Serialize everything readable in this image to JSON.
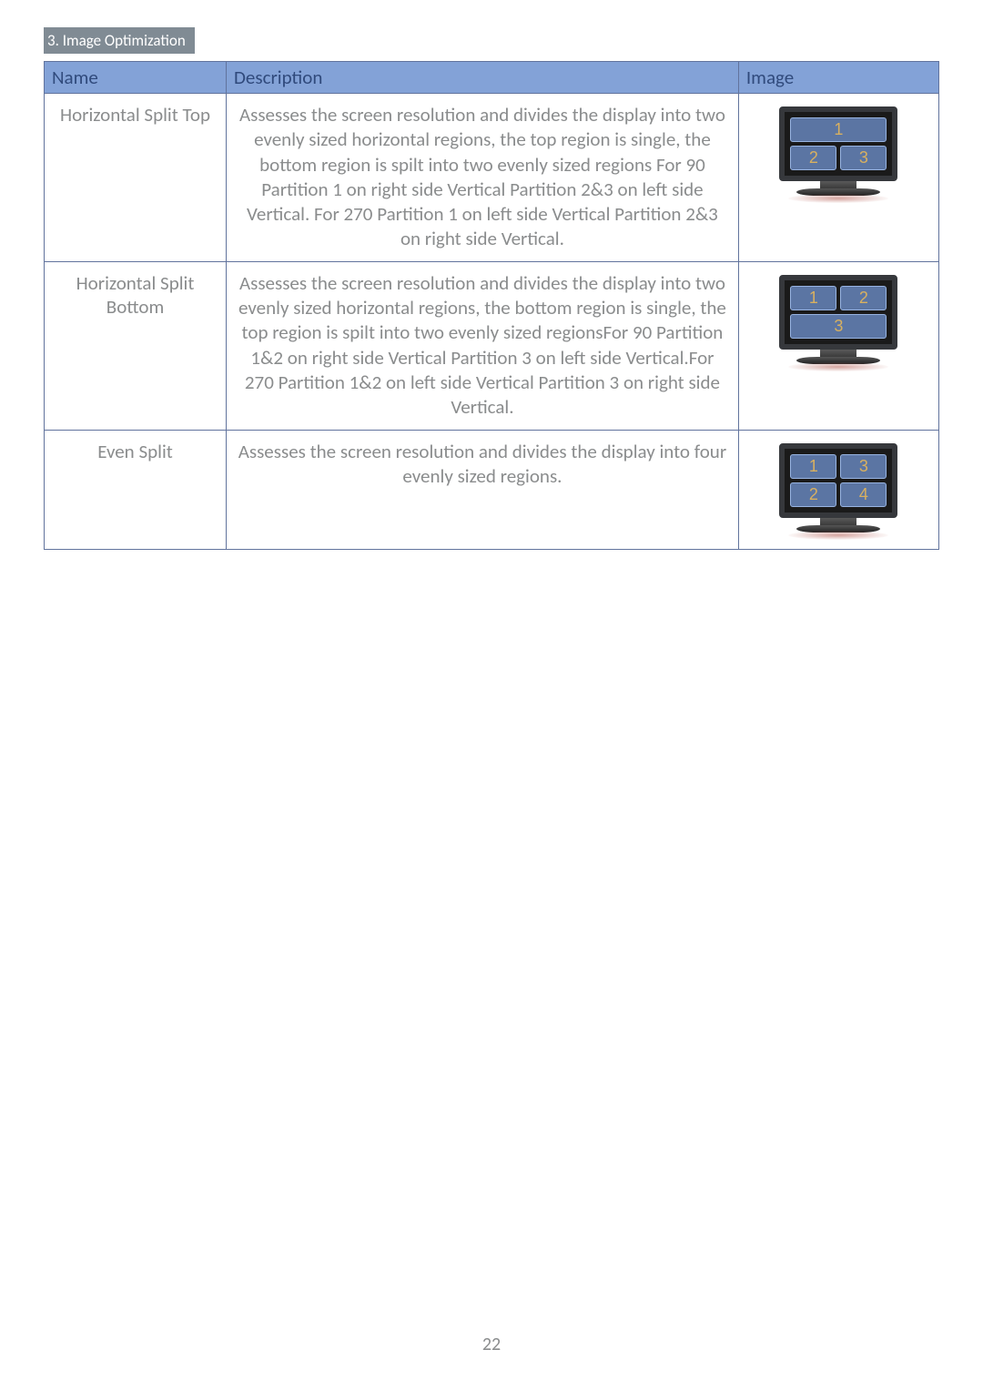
{
  "colors": {
    "header_bg": "#83a2d7",
    "header_text": "#304a7c",
    "border": "#61739d",
    "body_text": "#8a8c8d",
    "crumb_bg": "#808b94",
    "crumb_text": "#ffffff",
    "cell_bg": "#5b75a3",
    "cell_border": "#98b4e2",
    "cell_number": "#d8b060",
    "monitor_bezel": "#36383c",
    "monitor_screen": "#1a1a1a"
  },
  "crumb": "3. Image Optimization",
  "headers": {
    "name": "Name",
    "desc": "Description",
    "image": "Image"
  },
  "rows": [
    {
      "name": "Horizontal Split Top",
      "desc": "Assesses the screen resolution and divides the display into two evenly sized horizontal regions, the top region is single, the bottom region is spilt into two evenly sized regions\nFor 90 Partition 1 on right side Vertical Partition 2&3 on left side Vertical.\nFor 270 Partition 1 on left side Vertical Partition 2&3 on right side Vertical.",
      "layout": [
        [
          "1"
        ],
        [
          "2",
          "3"
        ]
      ]
    },
    {
      "name": "Horizontal Split Bottom",
      "desc": "Assesses the screen resolution and divides the display into two evenly sized horizontal regions, the bottom region is single, the top region is spilt into two evenly sized regionsFor 90 Partition 1&2 on right side Vertical Partition 3 on left side Vertical.For 270 Partition 1&2 on left side Vertical Partition 3 on right side Vertical.",
      "layout": [
        [
          "1",
          "2"
        ],
        [
          "3"
        ]
      ]
    },
    {
      "name": "Even Split",
      "desc": "Assesses the screen resolution and divides the display into four  evenly sized regions.",
      "layout": [
        [
          "1",
          "3"
        ],
        [
          "2",
          "4"
        ]
      ]
    }
  ],
  "page_number": "22"
}
